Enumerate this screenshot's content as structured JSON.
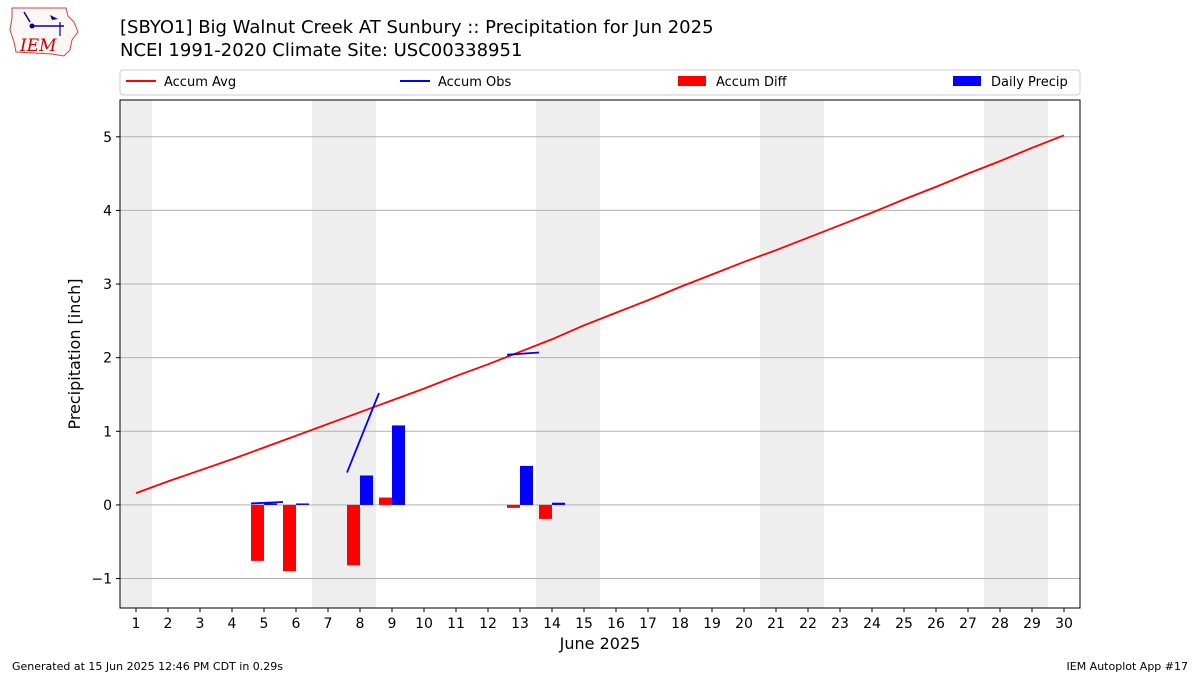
{
  "header": {
    "title_line1": "[SBYO1] Big Walnut Creek  AT Sunbury :: Precipitation for Jun 2025",
    "title_line2": "NCEI 1991-2020 Climate Site: USC00338951"
  },
  "logo": {
    "text": "IEM",
    "icon": "iem-logo-icon"
  },
  "footer": {
    "left": "Generated at 15 Jun 2025 12:46 PM CDT in 0.29s",
    "right": "IEM Autoplot App #17"
  },
  "colors": {
    "avg": "#ff0000",
    "obs": "#0000ff",
    "diff": "#ff0000",
    "daily": "#0000ff",
    "weekend": "#eeeeee",
    "grid": "#b0b0b0"
  },
  "chart_data": {
    "type": "bar",
    "xlabel": "June 2025",
    "ylabel": "Precipitation [inch]",
    "xlim": [
      0.5,
      30.5
    ],
    "ylim": [
      -1.4,
      5.5
    ],
    "yticks": [
      -1,
      0,
      1,
      2,
      3,
      4,
      5
    ],
    "ytick_labels": [
      "−1",
      "0",
      "1",
      "2",
      "3",
      "4",
      "5"
    ],
    "categories": [
      "1",
      "2",
      "3",
      "4",
      "5",
      "6",
      "7",
      "8",
      "9",
      "10",
      "11",
      "12",
      "13",
      "14",
      "15",
      "16",
      "17",
      "18",
      "19",
      "20",
      "21",
      "22",
      "23",
      "24",
      "25",
      "26",
      "27",
      "28",
      "29",
      "30"
    ],
    "legend": [
      "Accum Avg",
      "Accum Obs",
      "Accum Diff",
      "Daily Precip"
    ],
    "legend_position": "top",
    "weekend_bands": [
      [
        0.5,
        1.5
      ],
      [
        6.5,
        8.5
      ],
      [
        13.5,
        15.5
      ],
      [
        20.5,
        22.5
      ],
      [
        27.5,
        29.5
      ]
    ],
    "series": [
      {
        "name": "Accum Avg",
        "kind": "line",
        "x": [
          1,
          2,
          3,
          4,
          5,
          6,
          7,
          8,
          9,
          10,
          11,
          12,
          13,
          14,
          15,
          16,
          17,
          18,
          19,
          20,
          21,
          22,
          23,
          24,
          25,
          26,
          27,
          28,
          29,
          30
        ],
        "values": [
          0.16,
          0.32,
          0.47,
          0.62,
          0.78,
          0.94,
          1.1,
          1.26,
          1.42,
          1.58,
          1.75,
          1.91,
          2.08,
          2.25,
          2.44,
          2.61,
          2.78,
          2.96,
          3.13,
          3.3,
          3.46,
          3.63,
          3.8,
          3.97,
          4.15,
          4.32,
          4.5,
          4.67,
          4.85,
          5.02
        ]
      },
      {
        "name": "Accum Obs",
        "kind": "line",
        "segments": [
          {
            "x": [
              5,
              6
            ],
            "values": [
              0.02,
              0.04
            ]
          },
          {
            "x": [
              8,
              9
            ],
            "values": [
              0.44,
              1.52
            ]
          },
          {
            "x": [
              13,
              14
            ],
            "values": [
              2.04,
              2.07
            ]
          }
        ]
      },
      {
        "name": "Accum Diff",
        "kind": "bar",
        "x": [
          5,
          6,
          8,
          9,
          13,
          14
        ],
        "values": [
          -0.76,
          -0.9,
          -0.82,
          0.1,
          -0.04,
          -0.19
        ]
      },
      {
        "name": "Daily Precip",
        "kind": "bar",
        "x": [
          5,
          6,
          8,
          9,
          13,
          14
        ],
        "values": [
          0.02,
          0.02,
          0.4,
          1.08,
          0.53,
          0.03
        ]
      }
    ]
  }
}
